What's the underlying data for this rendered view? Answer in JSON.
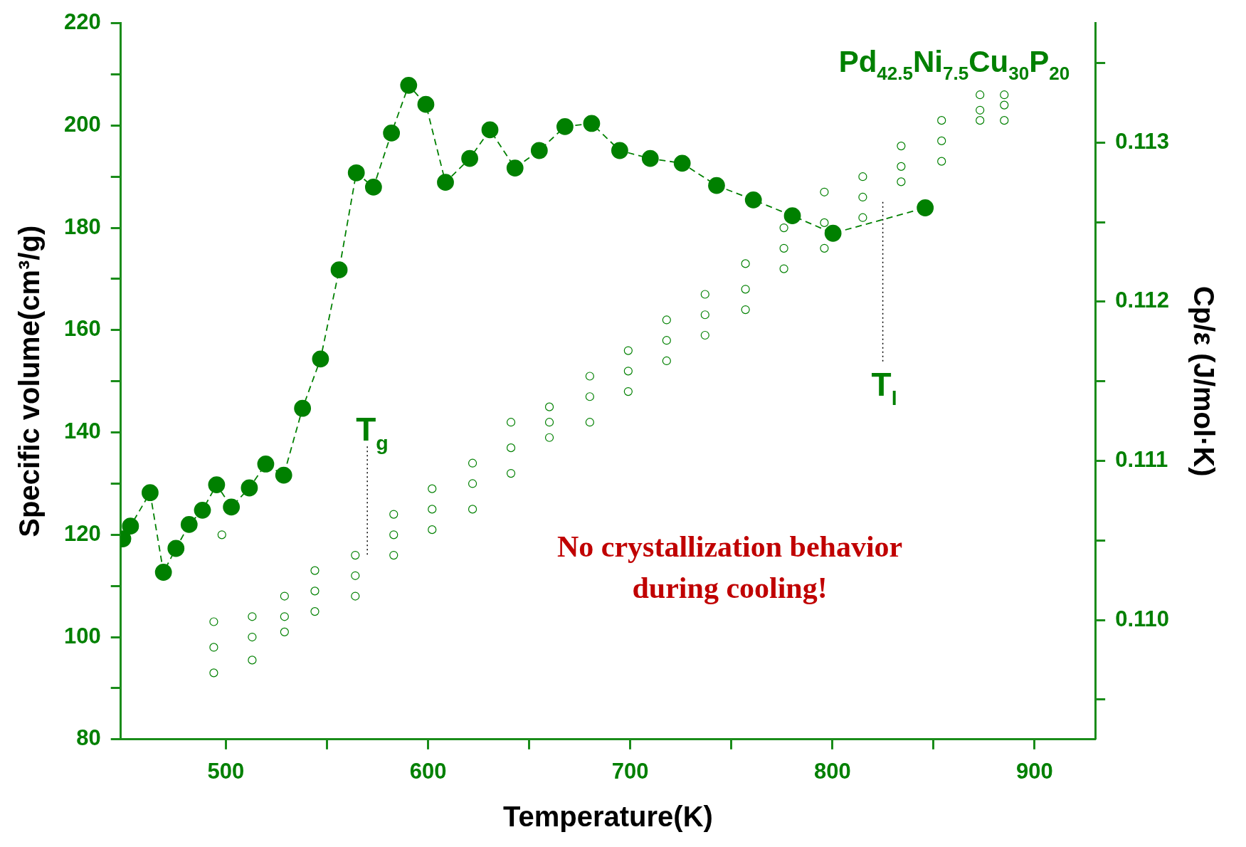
{
  "chart_data": {
    "type": "scatter",
    "xlabel": "Temperature(K)",
    "ylabel": "Specific volume(cm³/g)",
    "y2label": "Cp/ε (J/mol·K)",
    "xlim": [
      448,
      930
    ],
    "xticks": [
      500,
      {
        "value": 550,
        "label": null
      },
      600,
      {
        "value": 650,
        "label": null
      },
      700,
      {
        "value": 750,
        "label": null
      },
      800,
      {
        "value": 850,
        "label": null
      },
      900
    ],
    "ylim": [
      80,
      220
    ],
    "yticks": [
      80,
      {
        "value": 90,
        "label": null
      },
      100,
      {
        "value": 110,
        "label": null
      },
      120,
      {
        "value": 130,
        "label": null
      },
      140,
      {
        "value": 150,
        "label": null
      },
      160,
      {
        "value": 170,
        "label": null
      },
      180,
      {
        "value": 190,
        "label": null
      },
      200,
      {
        "value": 210,
        "label": null
      },
      220
    ],
    "y2lim": [
      0.10925,
      0.11375
    ],
    "y2ticks": [
      {
        "value": 0.1095,
        "label": null
      },
      {
        "value": 0.11,
        "label": "0.110"
      },
      {
        "value": 0.1105,
        "label": null
      },
      {
        "value": 0.111,
        "label": "0.111"
      },
      {
        "value": 0.1115,
        "label": null
      },
      {
        "value": 0.112,
        "label": "0.112"
      },
      {
        "value": 0.1125,
        "label": null
      },
      {
        "value": 0.113,
        "label": "0.113"
      },
      {
        "value": 0.1135,
        "label": null
      }
    ],
    "grid": false,
    "legend": false,
    "series": [
      {
        "color": "#008000",
        "marker": "circle",
        "x": [
          494,
          494,
          494,
          498,
          513,
          513,
          513,
          529,
          529,
          529,
          544,
          544,
          544,
          564,
          564,
          564,
          583,
          583,
          583,
          602,
          602,
          602,
          622,
          622,
          622,
          641,
          641,
          641,
          660,
          660,
          660,
          680,
          680,
          680,
          699,
          699,
          699,
          718,
          718,
          718,
          737,
          737,
          737,
          757,
          757,
          757,
          776,
          776,
          776,
          796,
          796,
          796,
          815,
          815,
          815,
          834,
          834,
          834,
          854,
          854,
          854,
          873,
          873,
          873,
          885,
          885,
          885
        ],
        "values": [
          103,
          98,
          93,
          120,
          104,
          100,
          95.5,
          108,
          104,
          101,
          113,
          109,
          105,
          116,
          112,
          108,
          124,
          120,
          116,
          129,
          125,
          121,
          134,
          130,
          125,
          142,
          137,
          132,
          145,
          142,
          139,
          151,
          147,
          142,
          156,
          152,
          148,
          162,
          158,
          154,
          167,
          163,
          159,
          173,
          168,
          164,
          180,
          176,
          172,
          187,
          181,
          176,
          190,
          186,
          182,
          196,
          192,
          189,
          201,
          197,
          193,
          206,
          203,
          201,
          206,
          204,
          201
        ]
      },
      {
        "type": "line",
        "axis": "y2",
        "color": "#008000",
        "marker": "circle",
        "line_style": "dashed",
        "x": [
          449,
          452.8,
          462.5,
          469.1,
          475.3,
          481.8,
          488.4,
          495.4,
          502.7,
          511.6,
          519.7,
          528.6,
          537.9,
          546.8,
          556,
          564.5,
          573,
          581.9,
          590.4,
          598.9,
          608.6,
          620.6,
          630.6,
          643,
          655,
          667.7,
          680.9,
          694.8,
          709.9,
          725.7,
          742.7,
          760.9,
          780.2,
          800.3,
          845.9
        ],
        "values": [
          0.11051,
          0.11059,
          0.1108,
          0.1103,
          0.11045,
          0.1106,
          0.11069,
          0.11085,
          0.11071,
          0.11083,
          0.11098,
          0.11091,
          0.11133,
          0.11164,
          0.1122,
          0.11281,
          0.11272,
          0.11306,
          0.11336,
          0.11324,
          0.11275,
          0.1129,
          0.11308,
          0.11284,
          0.11295,
          0.1131,
          0.11312,
          0.11295,
          0.1129,
          0.11287,
          0.11273,
          0.11264,
          0.11254,
          0.11243,
          0.11259
        ]
      }
    ],
    "annotations": [
      "Pd$_{42.5}$Ni$_{7.5}$Cu$_{30}$P$_{20}$",
      "No crystallization behavior during cooling!",
      "T$_{g}$",
      "T$_{l}$"
    ]
  }
}
